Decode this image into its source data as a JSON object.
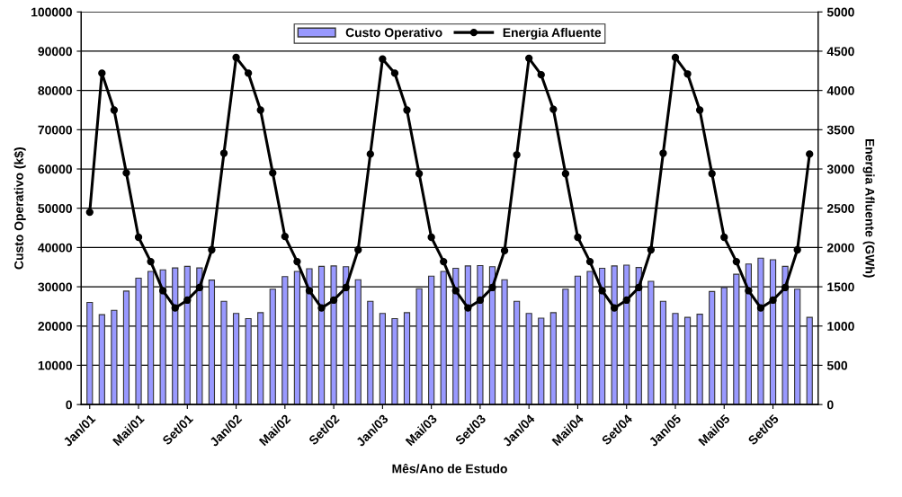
{
  "chart_data": {
    "type": "bar",
    "xlabel": "Mês/Ano de Estudo",
    "ylabel": "Custo Operativo (k$)",
    "y2label": "Energia Afluente (GWh)",
    "categories": [
      "Jan/01",
      null,
      null,
      null,
      "Mai/01",
      null,
      null,
      null,
      "Set/01",
      null,
      null,
      null,
      "Jan/02",
      null,
      null,
      null,
      "Mai/02",
      null,
      null,
      null,
      "Set/02",
      null,
      null,
      null,
      "Jan/03",
      null,
      null,
      null,
      "Mai/03",
      null,
      null,
      null,
      "Set/03",
      null,
      null,
      null,
      "Jan/04",
      null,
      null,
      null,
      "Mai/04",
      null,
      null,
      null,
      "Set/04",
      null,
      null,
      null,
      "Jan/05",
      null,
      null,
      null,
      "Mai/05",
      null,
      null,
      null,
      "Set/05",
      null,
      null,
      null
    ],
    "series": [
      {
        "name": "Custo Operativo",
        "color": "#9999ff",
        "values": [
          26000,
          22900,
          24000,
          28900,
          32200,
          33900,
          34300,
          34800,
          35200,
          34800,
          31700,
          26300,
          23200,
          21900,
          23400,
          29400,
          32600,
          33900,
          34600,
          35200,
          35300,
          35100,
          31800,
          26300,
          23200,
          21900,
          23400,
          29500,
          32700,
          33900,
          34700,
          35300,
          35400,
          35100,
          31800,
          26300,
          23200,
          22000,
          23400,
          29400,
          32700,
          33900,
          34700,
          35300,
          35500,
          34900,
          31400,
          26300,
          23200,
          22200,
          23000,
          28800,
          29800,
          33200,
          35800,
          37300,
          36900,
          35200,
          29400,
          22200
        ]
      },
      {
        "name": "Energia Afluente",
        "type": "line",
        "axis": "y2",
        "color": "#000000",
        "marker": "circle",
        "values": [
          2450,
          4220,
          3750,
          2950,
          2130,
          1820,
          1450,
          1230,
          1330,
          1490,
          1970,
          3200,
          4420,
          4220,
          3750,
          2950,
          2140,
          1820,
          1450,
          1230,
          1330,
          1490,
          1970,
          3190,
          4400,
          4220,
          3750,
          2940,
          2130,
          1820,
          1450,
          1230,
          1330,
          1490,
          1960,
          3180,
          4410,
          4200,
          3760,
          2940,
          2130,
          1820,
          1450,
          1230,
          1330,
          1490,
          1970,
          3200,
          4420,
          4210,
          3750,
          2940,
          2130,
          1820,
          1450,
          1230,
          1330,
          1490,
          1970,
          3190
        ]
      }
    ],
    "ylim": [
      0,
      100000
    ],
    "yticks": [
      0,
      10000,
      20000,
      30000,
      40000,
      50000,
      60000,
      70000,
      80000,
      90000,
      100000
    ],
    "y2lim": [
      0,
      5000
    ],
    "y2ticks": [
      0,
      500,
      1000,
      1500,
      2000,
      2500,
      3000,
      3500,
      4000,
      4500,
      5000
    ],
    "grid": "y",
    "legend": "top"
  }
}
